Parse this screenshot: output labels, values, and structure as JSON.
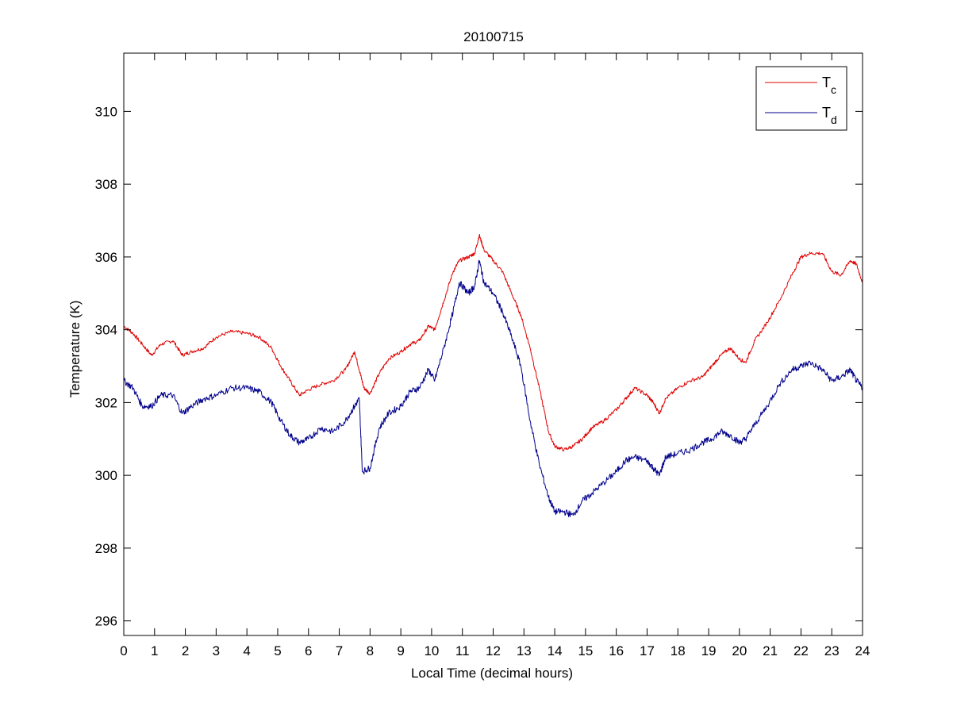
{
  "chart_data": {
    "type": "line",
    "title": "20100715",
    "xlabel": "Local Time (decimal hours)",
    "ylabel": "Temperature (K)",
    "xlim": [
      0,
      24
    ],
    "ylim": [
      295.6,
      311.6
    ],
    "xticks": [
      0,
      1,
      2,
      3,
      4,
      5,
      6,
      7,
      8,
      9,
      10,
      11,
      12,
      13,
      14,
      15,
      16,
      17,
      18,
      19,
      20,
      21,
      22,
      23,
      24
    ],
    "yticks": [
      296,
      298,
      300,
      302,
      304,
      306,
      308,
      310
    ],
    "grid": false,
    "legend_position": "top-right",
    "series": [
      {
        "name": "T_c",
        "legend_main": "T",
        "legend_sub": "c",
        "color": "#e00000",
        "points": [
          [
            0,
            304.1
          ],
          [
            0.3,
            303.9
          ],
          [
            0.6,
            303.6
          ],
          [
            0.9,
            303.3
          ],
          [
            1.2,
            303.6
          ],
          [
            1.6,
            303.7
          ],
          [
            1.9,
            303.3
          ],
          [
            2.2,
            303.4
          ],
          [
            2.6,
            303.5
          ],
          [
            3.0,
            303.8
          ],
          [
            3.5,
            303.95
          ],
          [
            4.0,
            303.9
          ],
          [
            4.4,
            303.8
          ],
          [
            4.8,
            303.5
          ],
          [
            5.1,
            303.0
          ],
          [
            5.4,
            302.6
          ],
          [
            5.7,
            302.2
          ],
          [
            6.0,
            302.35
          ],
          [
            6.4,
            302.5
          ],
          [
            6.8,
            302.6
          ],
          [
            7.2,
            302.9
          ],
          [
            7.5,
            303.4
          ],
          [
            7.65,
            302.9
          ],
          [
            7.8,
            302.4
          ],
          [
            8.0,
            302.25
          ],
          [
            8.3,
            302.8
          ],
          [
            8.6,
            303.2
          ],
          [
            9.0,
            303.4
          ],
          [
            9.3,
            303.6
          ],
          [
            9.6,
            303.7
          ],
          [
            9.9,
            304.1
          ],
          [
            10.1,
            304.0
          ],
          [
            10.4,
            304.8
          ],
          [
            10.7,
            305.6
          ],
          [
            10.9,
            305.9
          ],
          [
            11.2,
            306.0
          ],
          [
            11.4,
            306.1
          ],
          [
            11.55,
            306.6
          ],
          [
            11.7,
            306.2
          ],
          [
            12.0,
            305.9
          ],
          [
            12.3,
            305.6
          ],
          [
            12.6,
            305.0
          ],
          [
            12.9,
            304.4
          ],
          [
            13.2,
            303.5
          ],
          [
            13.5,
            302.4
          ],
          [
            13.8,
            301.2
          ],
          [
            14.0,
            300.8
          ],
          [
            14.3,
            300.7
          ],
          [
            14.6,
            300.8
          ],
          [
            14.9,
            301.0
          ],
          [
            15.2,
            301.3
          ],
          [
            15.6,
            301.5
          ],
          [
            16.0,
            301.8
          ],
          [
            16.3,
            302.1
          ],
          [
            16.6,
            302.4
          ],
          [
            17.0,
            302.2
          ],
          [
            17.2,
            302.0
          ],
          [
            17.4,
            301.7
          ],
          [
            17.6,
            302.1
          ],
          [
            18.0,
            302.4
          ],
          [
            18.4,
            302.6
          ],
          [
            18.8,
            302.7
          ],
          [
            19.1,
            303.0
          ],
          [
            19.4,
            303.3
          ],
          [
            19.7,
            303.5
          ],
          [
            20.0,
            303.2
          ],
          [
            20.2,
            303.1
          ],
          [
            20.5,
            303.7
          ],
          [
            20.9,
            304.2
          ],
          [
            21.3,
            304.8
          ],
          [
            21.7,
            305.5
          ],
          [
            22.0,
            306.0
          ],
          [
            22.3,
            306.1
          ],
          [
            22.7,
            306.1
          ],
          [
            23.0,
            305.6
          ],
          [
            23.3,
            305.5
          ],
          [
            23.6,
            305.9
          ],
          [
            23.8,
            305.8
          ],
          [
            24.0,
            305.3
          ]
        ]
      },
      {
        "name": "T_d",
        "legend_main": "T",
        "legend_sub": "d",
        "color": "#00008c",
        "points": [
          [
            0,
            302.6
          ],
          [
            0.3,
            302.4
          ],
          [
            0.6,
            301.9
          ],
          [
            0.9,
            301.9
          ],
          [
            1.2,
            302.2
          ],
          [
            1.6,
            302.2
          ],
          [
            1.9,
            301.7
          ],
          [
            2.2,
            301.9
          ],
          [
            2.6,
            302.1
          ],
          [
            3.0,
            302.2
          ],
          [
            3.5,
            302.4
          ],
          [
            4.0,
            302.4
          ],
          [
            4.4,
            302.3
          ],
          [
            4.8,
            302.0
          ],
          [
            5.1,
            301.5
          ],
          [
            5.4,
            301.1
          ],
          [
            5.7,
            300.9
          ],
          [
            6.0,
            301.0
          ],
          [
            6.4,
            301.3
          ],
          [
            6.8,
            301.2
          ],
          [
            7.2,
            301.5
          ],
          [
            7.5,
            301.9
          ],
          [
            7.65,
            302.1
          ],
          [
            7.75,
            300.1
          ],
          [
            8.0,
            300.2
          ],
          [
            8.3,
            301.3
          ],
          [
            8.6,
            301.7
          ],
          [
            9.0,
            301.9
          ],
          [
            9.3,
            302.3
          ],
          [
            9.6,
            302.4
          ],
          [
            9.9,
            302.9
          ],
          [
            10.1,
            302.6
          ],
          [
            10.4,
            303.5
          ],
          [
            10.7,
            304.5
          ],
          [
            10.9,
            305.3
          ],
          [
            11.2,
            305.0
          ],
          [
            11.4,
            305.2
          ],
          [
            11.55,
            305.9
          ],
          [
            11.7,
            305.3
          ],
          [
            12.0,
            305.0
          ],
          [
            12.3,
            304.5
          ],
          [
            12.6,
            303.8
          ],
          [
            12.9,
            303.0
          ],
          [
            13.2,
            301.5
          ],
          [
            13.5,
            300.3
          ],
          [
            13.8,
            299.4
          ],
          [
            14.0,
            299.0
          ],
          [
            14.3,
            299.0
          ],
          [
            14.6,
            298.9
          ],
          [
            14.9,
            299.3
          ],
          [
            15.2,
            299.5
          ],
          [
            15.6,
            299.8
          ],
          [
            16.0,
            300.1
          ],
          [
            16.3,
            300.4
          ],
          [
            16.6,
            300.5
          ],
          [
            17.0,
            300.4
          ],
          [
            17.2,
            300.2
          ],
          [
            17.4,
            300.0
          ],
          [
            17.6,
            300.5
          ],
          [
            18.0,
            300.6
          ],
          [
            18.4,
            300.7
          ],
          [
            18.8,
            300.9
          ],
          [
            19.1,
            301.0
          ],
          [
            19.4,
            301.2
          ],
          [
            19.7,
            301.1
          ],
          [
            20.0,
            300.9
          ],
          [
            20.2,
            301.0
          ],
          [
            20.5,
            301.4
          ],
          [
            20.9,
            301.9
          ],
          [
            21.3,
            302.5
          ],
          [
            21.7,
            302.9
          ],
          [
            22.0,
            303.0
          ],
          [
            22.3,
            303.1
          ],
          [
            22.7,
            302.9
          ],
          [
            23.0,
            302.6
          ],
          [
            23.3,
            302.7
          ],
          [
            23.6,
            302.9
          ],
          [
            23.8,
            302.6
          ],
          [
            24.0,
            302.4
          ]
        ]
      }
    ]
  }
}
